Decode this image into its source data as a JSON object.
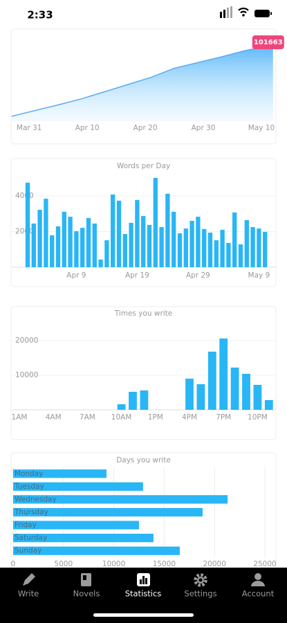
{
  "status_bar": {
    "time": "2:33"
  },
  "chart_data": [
    {
      "type": "area",
      "x": [
        -3,
        1,
        5,
        9,
        13,
        17,
        21,
        25,
        29,
        33,
        37,
        41,
        42
      ],
      "values": [
        6400,
        14000,
        21500,
        29500,
        39000,
        48500,
        58000,
        70000,
        77500,
        85000,
        93000,
        99500,
        101663
      ],
      "color": "#5aaaf2",
      "xlim": [
        -3,
        42.5
      ],
      "ylim": [
        0,
        110000
      ],
      "xticks": [
        {
          "value": 0,
          "label": "Mar 31"
        },
        {
          "value": 10,
          "label": "Apr 10"
        },
        {
          "value": 20,
          "label": "Apr 20"
        },
        {
          "value": 30,
          "label": "Apr 30"
        },
        {
          "value": 40,
          "label": "May 10"
        }
      ],
      "badge_color": "#f0457a"
    },
    {
      "type": "bar",
      "title": "Words per Day",
      "categories": [
        null,
        null,
        null,
        null,
        null,
        null,
        null,
        null,
        "Apr 9",
        null,
        null,
        null,
        null,
        null,
        null,
        null,
        null,
        null,
        "Apr 19",
        null,
        null,
        null,
        null,
        null,
        null,
        null,
        null,
        null,
        "Apr 29",
        null,
        null,
        null,
        null,
        null,
        null,
        null,
        null,
        null,
        "May 9",
        null
      ],
      "values": [
        4740,
        2450,
        3220,
        3840,
        1790,
        2290,
        3110,
        2830,
        2020,
        2210,
        2760,
        2450,
        430,
        1510,
        4080,
        3730,
        1860,
        2490,
        3770,
        2870,
        2370,
        5010,
        2250,
        4120,
        3110,
        1900,
        2170,
        2600,
        2830,
        2140,
        1940,
        1510,
        2100,
        1360,
        3070,
        1280,
        2640,
        2250,
        2170,
        1980
      ],
      "color": "#29b6f6",
      "ylim": [
        0,
        5300
      ],
      "yticks": [
        2000,
        4000
      ],
      "grid": true
    },
    {
      "type": "bar",
      "title": "Times you write",
      "categories": [
        "1AM",
        null,
        null,
        "4AM",
        null,
        null,
        "7AM",
        null,
        null,
        "10AM",
        null,
        null,
        "1PM",
        null,
        null,
        "4PM",
        null,
        null,
        "7PM",
        null,
        null,
        "10PM",
        null
      ],
      "values": [
        0,
        0,
        0,
        0,
        0,
        0,
        0,
        0,
        0,
        1600,
        5200,
        5600,
        0,
        0,
        0,
        9000,
        7400,
        16800,
        20600,
        12200,
        10400,
        7200,
        2800
      ],
      "color": "#29b6f6",
      "ylim": [
        0,
        22000
      ],
      "yticks": [
        10000,
        20000
      ],
      "grid": true
    },
    {
      "type": "barh",
      "title": "Days you write",
      "categories": [
        "Monday",
        "Tuesday",
        "Wednesday",
        "Thursday",
        "Friday",
        "Saturday",
        "Sunday"
      ],
      "values": [
        9270,
        12900,
        21300,
        18820,
        12500,
        13940,
        16550
      ],
      "color": "#29b6f6",
      "xlim": [
        0,
        25000
      ],
      "xticks": [
        0,
        5000,
        10000,
        15000,
        20000,
        25000
      ],
      "grid": true
    }
  ],
  "tabs": [
    "Write",
    "Novels",
    "Statistics",
    "Settings",
    "Account"
  ],
  "active_tab": 2
}
